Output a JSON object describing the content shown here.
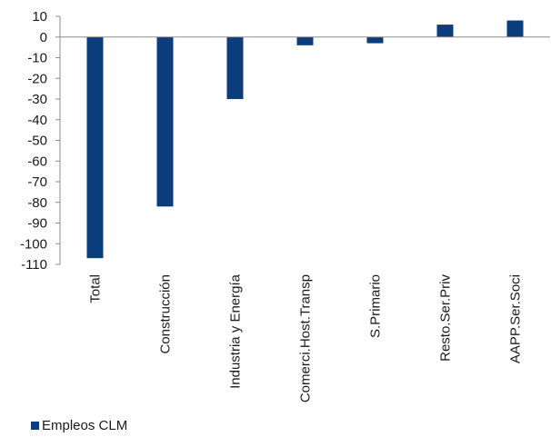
{
  "chart_data": {
    "type": "bar",
    "categories": [
      "Total",
      "Construcción",
      "Industria y Energía",
      "Comerci.Host.Transp",
      "S.Primario",
      "Resto.Ser.Priv",
      "AAPP.Ser.Soci"
    ],
    "series": [
      {
        "name": "Empleos CLM",
        "values": [
          -107,
          -82,
          -30,
          -4,
          -3,
          6,
          8
        ],
        "color": "#0b3d7d"
      }
    ],
    "ylim": [
      -110,
      10
    ],
    "yticks": [
      10,
      0,
      -10,
      -20,
      -30,
      -40,
      -50,
      -60,
      -70,
      -80,
      -90,
      -100,
      -110
    ],
    "grid": false,
    "legend_position": "bottom-left",
    "title": "",
    "xlabel": "",
    "ylabel": ""
  },
  "legend": {
    "label": "Empleos CLM"
  }
}
